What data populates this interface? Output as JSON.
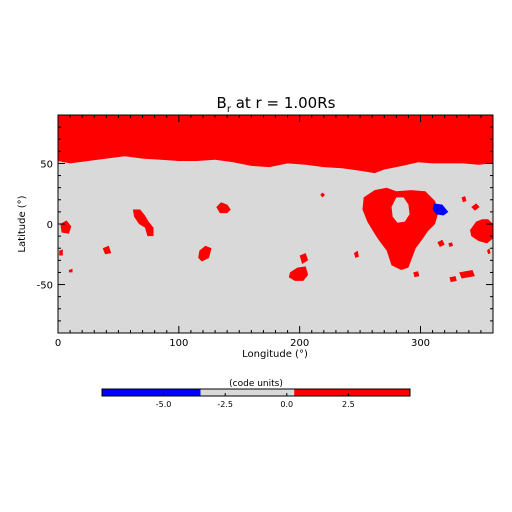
{
  "chart_data": {
    "type": "heatmap",
    "title_main": "B",
    "title_sub": "r",
    "title_rest": " at r = 1.00Rs",
    "xlabel": "Longitude (°)",
    "ylabel": "Latitude (°)",
    "xlim": [
      0,
      360
    ],
    "ylim": [
      -90,
      90
    ],
    "x_ticks": [
      0,
      100,
      200,
      300
    ],
    "y_ticks": [
      -50,
      0,
      50
    ],
    "x_tick_labels": [
      "0",
      "100",
      "200",
      "300"
    ],
    "y_tick_labels": [
      "-50",
      "0",
      "50"
    ],
    "background_color": "#d9d9d9",
    "positive_color": "#ff0000",
    "negative_color": "#0000ff",
    "north_boundary": [
      [
        0,
        52
      ],
      [
        10,
        50
      ],
      [
        25,
        52
      ],
      [
        40,
        54
      ],
      [
        55,
        56
      ],
      [
        70,
        54
      ],
      [
        85,
        53
      ],
      [
        100,
        52
      ],
      [
        115,
        52
      ],
      [
        130,
        53
      ],
      [
        145,
        51
      ],
      [
        160,
        48
      ],
      [
        175,
        47
      ],
      [
        190,
        50
      ],
      [
        205,
        49
      ],
      [
        220,
        47
      ],
      [
        235,
        46
      ],
      [
        250,
        44
      ],
      [
        262,
        42
      ],
      [
        270,
        45
      ],
      [
        285,
        48
      ],
      [
        298,
        51
      ],
      [
        310,
        50
      ],
      [
        320,
        50
      ],
      [
        335,
        50
      ],
      [
        348,
        49
      ],
      [
        360,
        50
      ]
    ],
    "positive_regions": [
      {
        "name": "central-ring",
        "points": [
          [
            253,
            22
          ],
          [
            262,
            28
          ],
          [
            272,
            30
          ],
          [
            280,
            27
          ],
          [
            292,
            28
          ],
          [
            304,
            27
          ],
          [
            312,
            19
          ],
          [
            315,
            10
          ],
          [
            312,
            0
          ],
          [
            306,
            -6
          ],
          [
            302,
            -12
          ],
          [
            296,
            -20
          ],
          [
            290,
            -36
          ],
          [
            284,
            -38
          ],
          [
            276,
            -34
          ],
          [
            272,
            -22
          ],
          [
            266,
            -14
          ],
          [
            262,
            -8
          ],
          [
            256,
            2
          ],
          [
            252,
            12
          ]
        ]
      },
      {
        "name": "lon60",
        "points": [
          [
            62,
            12
          ],
          [
            68,
            12
          ],
          [
            72,
            7
          ],
          [
            75,
            2
          ],
          [
            79,
            -3
          ],
          [
            79,
            -10
          ],
          [
            74,
            -10
          ],
          [
            72,
            -3
          ],
          [
            67,
            0
          ],
          [
            63,
            6
          ]
        ]
      },
      {
        "name": "lon137",
        "points": [
          [
            131,
            14
          ],
          [
            135,
            18
          ],
          [
            140,
            16
          ],
          [
            143,
            12
          ],
          [
            140,
            9
          ],
          [
            134,
            9
          ]
        ]
      },
      {
        "name": "lon125",
        "points": [
          [
            117,
            -22
          ],
          [
            122,
            -18
          ],
          [
            127,
            -20
          ],
          [
            125,
            -28
          ],
          [
            119,
            -31
          ],
          [
            116,
            -28
          ]
        ]
      },
      {
        "name": "lon200",
        "points": [
          [
            192,
            -40
          ],
          [
            198,
            -36
          ],
          [
            205,
            -35
          ],
          [
            207,
            -42
          ],
          [
            203,
            -47
          ],
          [
            196,
            -47
          ],
          [
            191,
            -44
          ]
        ]
      },
      {
        "name": "lon205",
        "points": [
          [
            200,
            -26
          ],
          [
            205,
            -24
          ],
          [
            207,
            -30
          ],
          [
            202,
            -33
          ]
        ]
      },
      {
        "name": "lon4",
        "points": [
          [
            2,
            0
          ],
          [
            7,
            3
          ],
          [
            11,
            -2
          ],
          [
            9,
            -8
          ],
          [
            3,
            -7
          ]
        ]
      },
      {
        "name": "lon40",
        "points": [
          [
            37,
            -20
          ],
          [
            42,
            -18
          ],
          [
            44,
            -24
          ],
          [
            39,
            -25
          ]
        ]
      },
      {
        "name": "lon350",
        "points": [
          [
            341,
            -5
          ],
          [
            346,
            2
          ],
          [
            351,
            4
          ],
          [
            356,
            4
          ],
          [
            360,
            0
          ],
          [
            360,
            -12
          ],
          [
            355,
            -16
          ],
          [
            348,
            -14
          ],
          [
            342,
            -10
          ]
        ]
      },
      {
        "name": "lon340-south",
        "points": [
          [
            332,
            -40
          ],
          [
            343,
            -38
          ],
          [
            345,
            -43
          ],
          [
            334,
            -45
          ]
        ]
      },
      {
        "name": "lon345-north",
        "points": [
          [
            342,
            14
          ],
          [
            346,
            17
          ],
          [
            349,
            14
          ],
          [
            345,
            11
          ]
        ]
      },
      {
        "name": "lon336",
        "points": [
          [
            334,
            22
          ],
          [
            337,
            23
          ],
          [
            338,
            19
          ],
          [
            335,
            18
          ]
        ]
      },
      {
        "name": "lon314",
        "points": [
          [
            314,
            -15
          ],
          [
            318,
            -13
          ],
          [
            320,
            -17
          ],
          [
            316,
            -19
          ]
        ]
      },
      {
        "name": "lon326",
        "points": [
          [
            324,
            -44
          ],
          [
            329,
            -43
          ],
          [
            330,
            -47
          ],
          [
            325,
            -48
          ]
        ]
      },
      {
        "name": "lon296",
        "points": [
          [
            294,
            -40
          ],
          [
            298,
            -39
          ],
          [
            299,
            -43
          ],
          [
            295,
            -44
          ]
        ]
      },
      {
        "name": "lon248",
        "points": [
          [
            245,
            -24
          ],
          [
            248,
            -22
          ],
          [
            249,
            -27
          ],
          [
            246,
            -28
          ]
        ]
      },
      {
        "name": "lon218",
        "points": [
          [
            217,
            24
          ],
          [
            219,
            26
          ],
          [
            221,
            24
          ],
          [
            219,
            22
          ]
        ]
      },
      {
        "name": "lon324",
        "points": [
          [
            323,
            -16
          ],
          [
            326,
            -15
          ],
          [
            327,
            -18
          ],
          [
            324,
            -19
          ]
        ]
      },
      {
        "name": "lon357",
        "points": [
          [
            355,
            -22
          ],
          [
            357,
            -20
          ],
          [
            358,
            -24
          ],
          [
            356,
            -25
          ]
        ]
      },
      {
        "name": "lon2b",
        "points": [
          [
            1,
            -22
          ],
          [
            4,
            -21
          ],
          [
            4,
            -26
          ],
          [
            1,
            -26
          ]
        ]
      },
      {
        "name": "lon10b",
        "points": [
          [
            9,
            -38
          ],
          [
            12,
            -37
          ],
          [
            12,
            -40
          ],
          [
            9,
            -40
          ]
        ]
      }
    ],
    "ring_hole": [
      [
        280,
        22
      ],
      [
        286,
        22
      ],
      [
        290,
        16
      ],
      [
        291,
        8
      ],
      [
        287,
        2
      ],
      [
        281,
        1
      ],
      [
        277,
        6
      ],
      [
        276,
        14
      ]
    ],
    "negative_regions": [
      {
        "name": "blue-spot",
        "points": [
          [
            311,
            17
          ],
          [
            318,
            16
          ],
          [
            323,
            10
          ],
          [
            319,
            7
          ],
          [
            313,
            8
          ],
          [
            310,
            12
          ]
        ]
      }
    ],
    "colorbar": {
      "label": "(code units)",
      "tick_values": [
        -5.0,
        -2.5,
        0.0,
        2.5
      ],
      "tick_labels": [
        "-5.0",
        "-2.5",
        "0.0",
        "2.5"
      ],
      "range": [
        -7.5,
        5.0
      ],
      "segments": [
        {
          "from": -7.5,
          "to": -3.5,
          "color": "#0000ff"
        },
        {
          "from": -3.5,
          "to": 0.3,
          "color": "#d9d9d9"
        },
        {
          "from": 0.3,
          "to": 5.0,
          "color": "#ff0000"
        }
      ]
    }
  }
}
